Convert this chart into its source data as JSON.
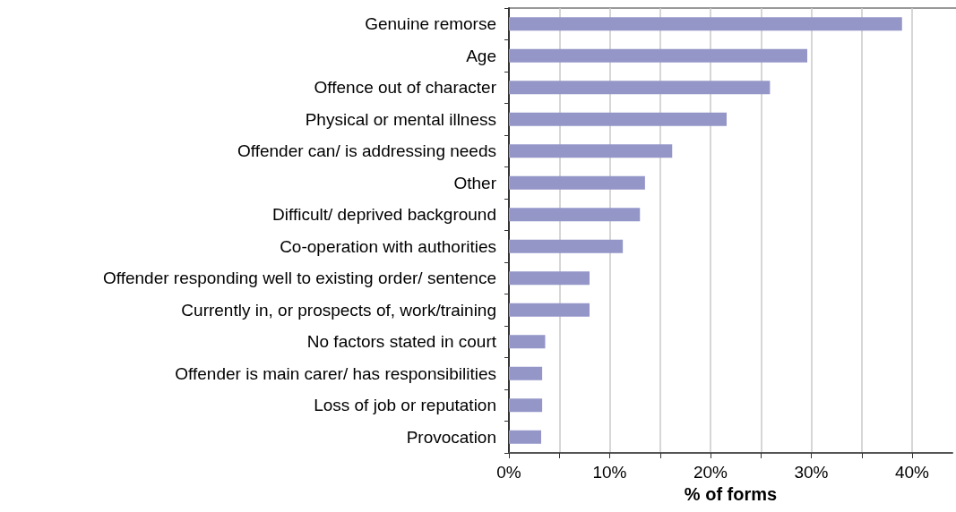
{
  "chart_data": {
    "type": "bar",
    "orientation": "horizontal",
    "xlabel": "% of forms",
    "categories": [
      "Genuine remorse",
      "Age",
      "Offence out of character",
      "Physical or mental illness",
      "Offender can/ is addressing needs",
      "Other",
      "Difficult/ deprived background",
      "Co-operation with authorities",
      "Offender responding well to existing order/ sentence",
      "Currently in, or prospects of, work/training",
      "No factors stated in court",
      "Offender is main carer/ has responsibilities",
      "Loss of job or reputation",
      "Provocation"
    ],
    "values": [
      39.0,
      29.6,
      25.9,
      21.6,
      16.2,
      13.5,
      13.0,
      11.3,
      8.0,
      8.0,
      3.6,
      3.3,
      3.3,
      3.2
    ],
    "color": "#9596c8",
    "xlim": [
      0,
      44
    ],
    "xticks": [
      {
        "value": 0,
        "label": "0%"
      },
      {
        "value": 5,
        "label": null
      },
      {
        "value": 10,
        "label": "10%"
      },
      {
        "value": 15,
        "label": null
      },
      {
        "value": 20,
        "label": "20%"
      },
      {
        "value": 25,
        "label": null
      },
      {
        "value": 30,
        "label": "30%"
      },
      {
        "value": 35,
        "label": null
      },
      {
        "value": 40,
        "label": "40%"
      }
    ],
    "grid": "x"
  }
}
